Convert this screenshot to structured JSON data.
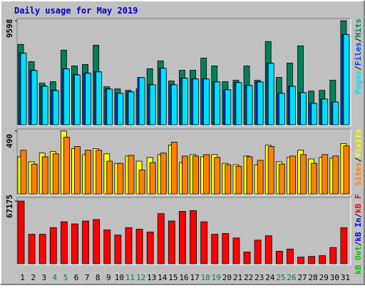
{
  "chart_data": {
    "type": "bar",
    "title": "Daily usage for May 2019",
    "categories": [
      "1",
      "2",
      "3",
      "4",
      "5",
      "6",
      "7",
      "8",
      "9",
      "10",
      "11",
      "12",
      "13",
      "14",
      "15",
      "16",
      "17",
      "18",
      "19",
      "20",
      "21",
      "22",
      "23",
      "24",
      "25",
      "26",
      "27",
      "28",
      "29",
      "30",
      "31"
    ],
    "highlight_categories": [
      "4",
      "5",
      "11",
      "12",
      "18",
      "19",
      "25",
      "26"
    ],
    "highlight_color": "#008040",
    "legend_separator": "/",
    "panels": [
      {
        "ylim": [
          0,
          9800
        ],
        "yticks": [
          9598
        ],
        "series": [
          {
            "name": "Hits",
            "color": "#00805c",
            "values": [
              7415,
              5826,
              3840,
              3972,
              6885,
              5429,
              5561,
              7349,
              3509,
              3310,
              3178,
              3310,
              5164,
              5892,
              4038,
              5032,
              5032,
              6157,
              5429,
              3972,
              4105,
              5429,
              4105,
              7680,
              4369,
              5694,
              7282,
              3112,
              3178,
              4105,
              9598
            ]
          },
          {
            "name": "Files",
            "color": "#0040ff",
            "values": [
              6620,
              5032,
              3575,
              3178,
              5164,
              4634,
              4767,
              4899,
              3310,
              2913,
              3045,
              4369,
              3707,
              5230,
              3707,
              4303,
              4237,
              4237,
              3972,
              3244,
              3906,
              3641,
              3972,
              5694,
              2913,
              3575,
              2979,
              1986,
              2383,
              2118,
              8342
            ]
          },
          {
            "name": "Pages",
            "color": "#00e0ff",
            "values": [
              6600,
              5000,
              3550,
              3150,
              5150,
              4600,
              4750,
              4880,
              3290,
              2900,
              3030,
              4350,
              3690,
              5210,
              3690,
              4290,
              4220,
              4220,
              3950,
              3230,
              3890,
              3620,
              3950,
              5670,
              2900,
              3550,
              2960,
              1970,
              2370,
              2100,
              8320
            ]
          }
        ]
      },
      {
        "ylim": [
          0,
          505
        ],
        "yticks": [
          490
        ],
        "series": [
          {
            "name": "Visits",
            "color": "#ffff00",
            "values": [
              289,
              250,
              318,
              329,
              490,
              352,
              306,
              352,
              312,
              238,
              295,
              255,
              284,
              306,
              380,
              244,
              306,
              289,
              306,
              238,
              227,
              295,
              227,
              380,
              250,
              284,
              340,
              272,
              284,
              278,
              391
            ]
          },
          {
            "name": "Sites",
            "color": "#ff8000",
            "values": [
              340,
              232,
              289,
              312,
              442,
              369,
              340,
              340,
              255,
              238,
              300,
              187,
              244,
              318,
              403,
              295,
              295,
              306,
              284,
              227,
              215,
              289,
              261,
              369,
              232,
              295,
              306,
              238,
              306,
              295,
              374
            ]
          }
        ]
      },
      {
        "ylim": [
          0,
          71000
        ],
        "yticks": [
          67175
        ],
        "series": [
          {
            "name": "kB F",
            "color": "#ff0000",
            "values": [
              67175,
              31600,
              31600,
              38700,
              45000,
              42700,
              45800,
              47400,
              36300,
              30800,
              38700,
              37100,
              34000,
              53700,
              45800,
              56100,
              56900,
              45000,
              31600,
              32400,
              27600,
              12600,
              25300,
              30000,
              13400,
              15800,
              7100,
              7900,
              8700,
              17400,
              38700
            ]
          }
        ],
        "legend_extra": [
          {
            "name": "kB In",
            "color": "#0000ff"
          },
          {
            "name": "kB Out",
            "color": "#00c000"
          }
        ]
      }
    ]
  }
}
